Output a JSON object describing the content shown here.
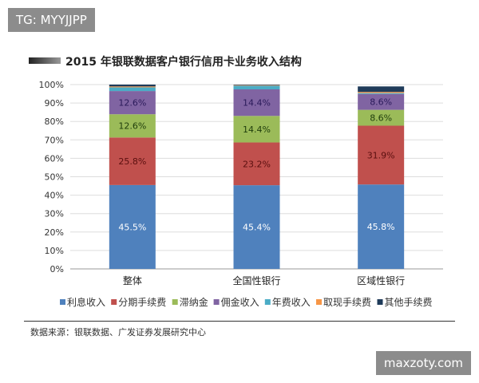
{
  "watermarks": {
    "top_left": "TG: MYYJJPP",
    "bottom_right": "maxzoty.com"
  },
  "chart_data": {
    "type": "bar",
    "stacked": true,
    "title": "2015 年银联数据客户银行信用卡业务收入结构",
    "categories": [
      "整体",
      "全国性银行",
      "区域性银行"
    ],
    "ylim": [
      0,
      100
    ],
    "yticks": [
      "0%",
      "10%",
      "20%",
      "30%",
      "40%",
      "50%",
      "60%",
      "70%",
      "80%",
      "90%",
      "100%"
    ],
    "grid": true,
    "legend": "bottom",
    "series": [
      {
        "name": "利息收入",
        "color": "#4f81bd",
        "values": [
          45.5,
          45.4,
          45.8
        ],
        "labels": [
          "45.5%",
          "45.4%",
          "45.8%"
        ]
      },
      {
        "name": "分期手续费",
        "color": "#c0504d",
        "values": [
          25.8,
          23.2,
          31.9
        ],
        "labels": [
          "25.8%",
          "23.2%",
          "31.9%"
        ]
      },
      {
        "name": "滞纳金",
        "color": "#9bbb59",
        "values": [
          12.6,
          14.4,
          8.6
        ],
        "labels": [
          "12.6%",
          "14.4%",
          "8.6%"
        ]
      },
      {
        "name": "佣金收入",
        "color": "#8064a2",
        "values": [
          12.6,
          14.4,
          8.6
        ],
        "labels": [
          "12.6%",
          "14.4%",
          "8.6%"
        ]
      },
      {
        "name": "年费收入",
        "color": "#4bacc6",
        "values": [
          2.0,
          2.0,
          0.5
        ],
        "labels": [
          "",
          "",
          ""
        ]
      },
      {
        "name": "取现手续费",
        "color": "#f79646",
        "values": [
          0.5,
          0.3,
          0.6
        ],
        "labels": [
          "",
          "",
          ""
        ]
      },
      {
        "name": "其他手续费",
        "color": "#1f3b5a",
        "values": [
          1.0,
          0.3,
          3.0
        ],
        "labels": [
          "",
          "",
          ""
        ]
      }
    ]
  },
  "source": "数据来源：银联数据、广发证券发展研究中心"
}
